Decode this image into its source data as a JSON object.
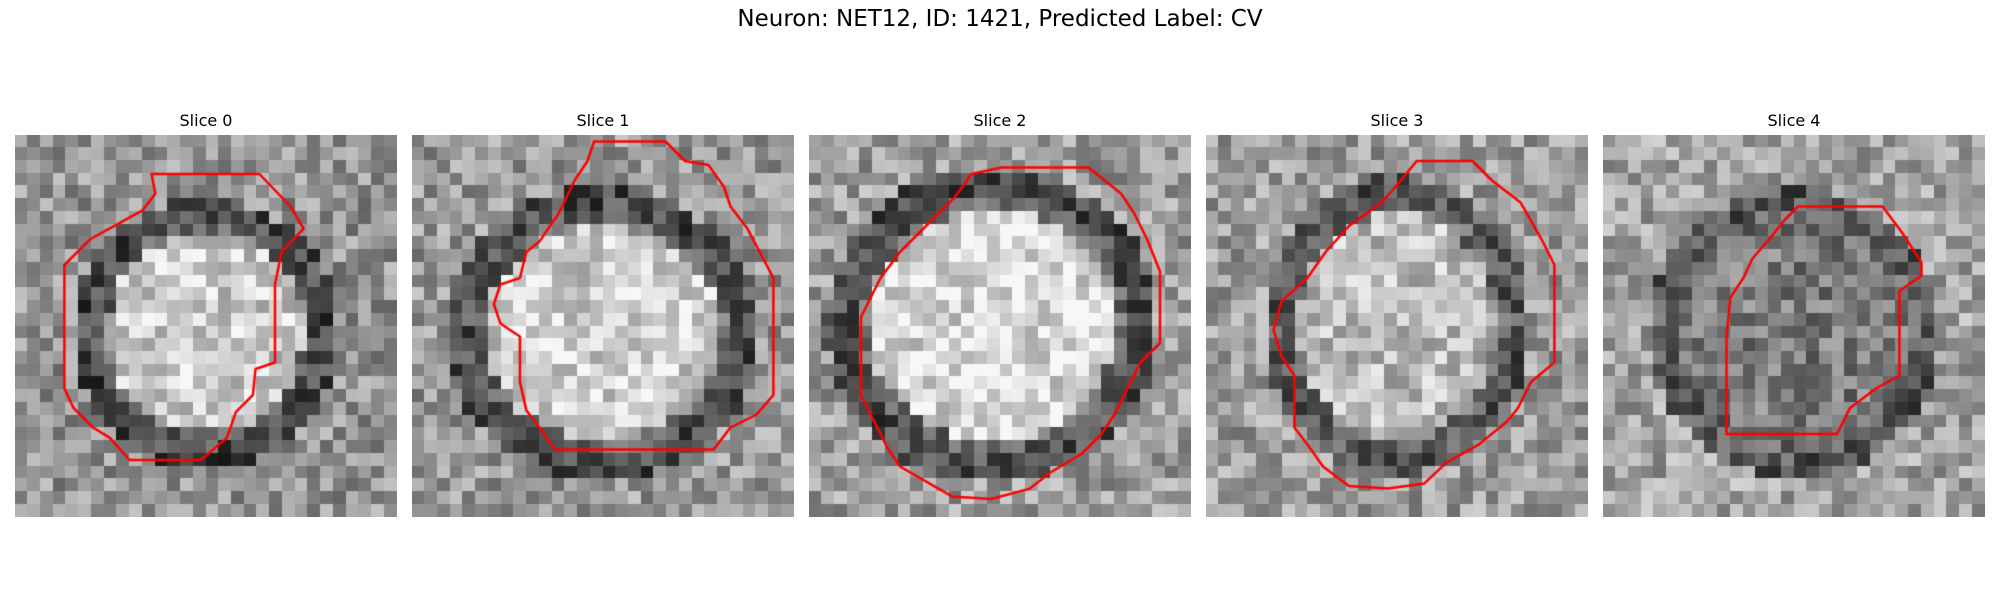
{
  "figure": {
    "title": "Neuron: NET12, ID: 1421, Predicted Label: CV",
    "outline_color": "#ff0000",
    "colormap": "gray"
  },
  "panels": [
    {
      "title": "Slice 0"
    },
    {
      "title": "Slice 1"
    },
    {
      "title": "Slice 2"
    },
    {
      "title": "Slice 3"
    },
    {
      "title": "Slice 4"
    }
  ]
}
